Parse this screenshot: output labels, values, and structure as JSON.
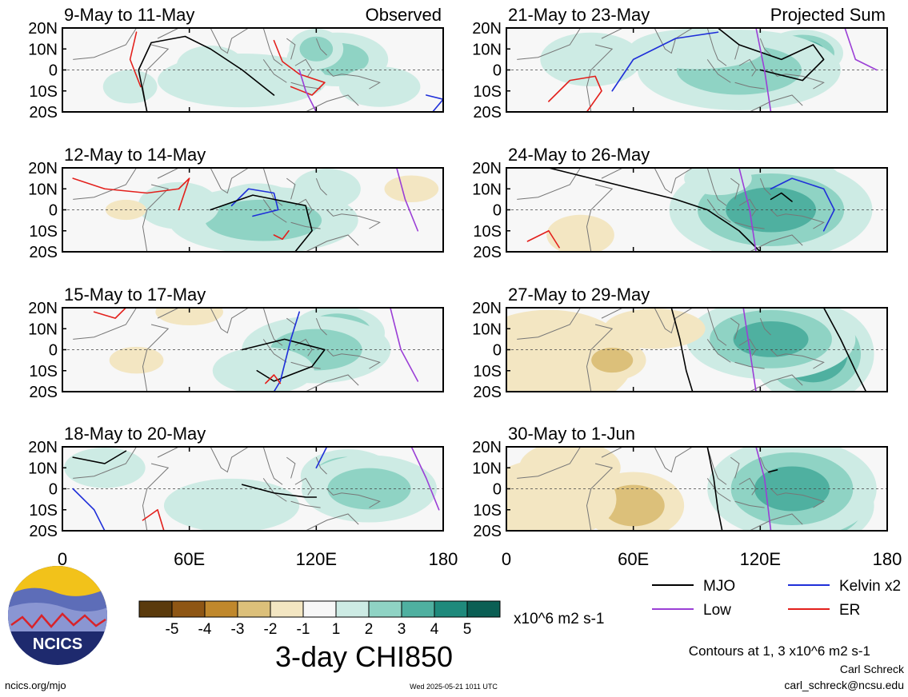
{
  "chart_data": {
    "type": "heatmap",
    "title": "3-day CHI850",
    "variable": "CHI850",
    "units": "x10^6 m2 s-1",
    "contour_note": "Contours at 1, 3 x10^6 m2 s-1",
    "colorbar": {
      "tick_labels": [
        "-5",
        "-4",
        "-3",
        "-2",
        "-1",
        "1",
        "2",
        "3",
        "4",
        "5"
      ],
      "colors": [
        "#5a3a0c",
        "#8e5614",
        "#c0882c",
        "#dcc07a",
        "#f3e6c2",
        "#f7f7f7",
        "#cdebe4",
        "#8fd3c4",
        "#4fb0a0",
        "#1f8a7c",
        "#0b5f54"
      ]
    },
    "x_ticks": [
      "0",
      "60E",
      "120E",
      "180"
    ],
    "y_ticks": [
      "20N",
      "10N",
      "0",
      "10S",
      "20S"
    ],
    "xlim": [
      0,
      180
    ],
    "ylim": [
      -20,
      20
    ],
    "legend": [
      {
        "label": "MJO",
        "color": "#000000"
      },
      {
        "label": "Kelvin x2",
        "color": "#1f2fd9"
      },
      {
        "label": "Low",
        "color": "#9b3fd6"
      },
      {
        "label": "ER",
        "color": "#e3201c"
      }
    ],
    "panels": [
      {
        "title": "9-May to 11-May",
        "tag": "Observed",
        "blobs": [
          [
            70,
            2,
            10,
            6,
            1
          ],
          [
            130,
            5,
            15,
            8,
            2
          ],
          [
            32,
            -8,
            8,
            5,
            1
          ],
          [
            85,
            -5,
            25,
            8,
            1
          ],
          [
            120,
            10,
            8,
            6,
            2
          ],
          [
            150,
            -8,
            12,
            6,
            1
          ]
        ],
        "lines": [
          {
            "kind": "mjo",
            "pts": [
              [
                40,
                -20
              ],
              [
                36,
                0
              ],
              [
                42,
                13
              ],
              [
                58,
                16
              ],
              [
                70,
                10
              ],
              [
                85,
                0
              ],
              [
                100,
                -12
              ]
            ]
          },
          {
            "kind": "er",
            "pts": [
              [
                35,
                18
              ],
              [
                32,
                5
              ],
              [
                37,
                -8
              ]
            ]
          },
          {
            "kind": "er",
            "pts": [
              [
                100,
                14
              ],
              [
                104,
                4
              ],
              [
                112,
                -2
              ],
              [
                124,
                -6
              ],
              [
                118,
                -12
              ],
              [
                108,
                -8
              ]
            ]
          },
          {
            "kind": "kelvin",
            "pts": [
              [
                172,
                -12
              ],
              [
                180,
                -14
              ],
              [
                175,
                -20
              ]
            ]
          },
          {
            "kind": "low",
            "pts": [
              [
                112,
                0
              ],
              [
                115,
                -10
              ],
              [
                120,
                -20
              ]
            ]
          }
        ]
      },
      {
        "title": "12-May to 14-May",
        "blobs": [
          [
            92,
            3,
            12,
            6,
            3
          ],
          [
            95,
            -5,
            28,
            10,
            2
          ],
          [
            55,
            2,
            12,
            7,
            1
          ],
          [
            125,
            10,
            10,
            6,
            1
          ],
          [
            30,
            0,
            6,
            3,
            -1
          ],
          [
            165,
            10,
            8,
            4,
            -1
          ]
        ],
        "lines": [
          {
            "kind": "er",
            "pts": [
              [
                5,
                15
              ],
              [
                20,
                10
              ],
              [
                40,
                8
              ],
              [
                55,
                10
              ],
              [
                60,
                15
              ],
              [
                55,
                0
              ]
            ]
          },
          {
            "kind": "kelvin",
            "pts": [
              [
                80,
                2
              ],
              [
                88,
                10
              ],
              [
                100,
                8
              ],
              [
                102,
                0
              ],
              [
                90,
                -3
              ]
            ]
          },
          {
            "kind": "mjo",
            "pts": [
              [
                70,
                0
              ],
              [
                90,
                7
              ],
              [
                115,
                2
              ],
              [
                118,
                -10
              ],
              [
                110,
                -20
              ]
            ]
          },
          {
            "kind": "er",
            "pts": [
              [
                100,
                -12
              ],
              [
                104,
                -14
              ],
              [
                107,
                -10
              ]
            ]
          },
          {
            "kind": "low",
            "pts": [
              [
                158,
                20
              ],
              [
                162,
                5
              ],
              [
                168,
                -10
              ]
            ]
          }
        ]
      },
      {
        "title": "15-May to 17-May",
        "blobs": [
          [
            130,
            8,
            14,
            8,
            3
          ],
          [
            120,
            0,
            22,
            10,
            2
          ],
          [
            95,
            -10,
            15,
            7,
            1
          ],
          [
            35,
            -5,
            8,
            4,
            -1
          ],
          [
            60,
            18,
            10,
            4,
            -1
          ]
        ],
        "lines": [
          {
            "kind": "mjo",
            "pts": [
              [
                85,
                0
              ],
              [
                105,
                5
              ],
              [
                124,
                0
              ],
              [
                118,
                -8
              ],
              [
                100,
                -15
              ],
              [
                92,
                -10
              ]
            ]
          },
          {
            "kind": "kelvin",
            "pts": [
              [
                112,
                18
              ],
              [
                108,
                5
              ],
              [
                103,
                -15
              ],
              [
                100,
                -20
              ]
            ]
          },
          {
            "kind": "er",
            "pts": [
              [
                96,
                -16
              ],
              [
                100,
                -12
              ],
              [
                103,
                -16
              ]
            ]
          },
          {
            "kind": "er",
            "pts": [
              [
                15,
                18
              ],
              [
                25,
                15
              ],
              [
                30,
                20
              ]
            ]
          },
          {
            "kind": "low",
            "pts": [
              [
                155,
                20
              ],
              [
                160,
                0
              ],
              [
                168,
                -15
              ]
            ]
          }
        ]
      },
      {
        "title": "18-May to 20-May",
        "blobs": [
          [
            135,
            6,
            14,
            8,
            3
          ],
          [
            80,
            -8,
            20,
            8,
            1
          ],
          [
            20,
            10,
            12,
            6,
            1
          ],
          [
            145,
            0,
            20,
            10,
            2
          ]
        ],
        "lines": [
          {
            "kind": "mjo",
            "pts": [
              [
                5,
                15
              ],
              [
                20,
                12
              ],
              [
                30,
                18
              ]
            ]
          },
          {
            "kind": "mjo",
            "pts": [
              [
                85,
                2
              ],
              [
                100,
                -2
              ],
              [
                115,
                -4
              ],
              [
                120,
                -4
              ]
            ]
          },
          {
            "kind": "er",
            "pts": [
              [
                38,
                -15
              ],
              [
                45,
                -10
              ],
              [
                48,
                -20
              ]
            ]
          },
          {
            "kind": "kelvin",
            "pts": [
              [
                5,
                0
              ],
              [
                15,
                -10
              ],
              [
                20,
                -20
              ]
            ]
          },
          {
            "kind": "kelvin",
            "pts": [
              [
                125,
                20
              ],
              [
                120,
                10
              ]
            ]
          },
          {
            "kind": "low",
            "pts": [
              [
                165,
                20
              ],
              [
                172,
                5
              ],
              [
                178,
                -10
              ]
            ]
          }
        ]
      },
      {
        "title": "21-May to 23-May",
        "tag": "Projected Sum",
        "blobs": [
          [
            140,
            8,
            12,
            7,
            4
          ],
          [
            110,
            0,
            30,
            12,
            2
          ],
          [
            40,
            5,
            15,
            8,
            1
          ],
          [
            90,
            10,
            20,
            6,
            1
          ]
        ],
        "lines": [
          {
            "kind": "mjo",
            "pts": [
              [
                100,
                20
              ],
              [
                110,
                12
              ],
              [
                130,
                5
              ],
              [
                145,
                12
              ],
              [
                150,
                5
              ],
              [
                140,
                -5
              ],
              [
                120,
                0
              ]
            ]
          },
          {
            "kind": "er",
            "pts": [
              [
                20,
                -15
              ],
              [
                30,
                -5
              ],
              [
                42,
                -3
              ],
              [
                45,
                -10
              ],
              [
                38,
                -20
              ]
            ]
          },
          {
            "kind": "kelvin",
            "pts": [
              [
                50,
                -10
              ],
              [
                60,
                5
              ],
              [
                80,
                15
              ],
              [
                100,
                18
              ]
            ]
          },
          {
            "kind": "low",
            "pts": [
              [
                118,
                20
              ],
              [
                122,
                0
              ],
              [
                125,
                -20
              ]
            ]
          },
          {
            "kind": "low",
            "pts": [
              [
                160,
                20
              ],
              [
                165,
                5
              ],
              [
                175,
                0
              ]
            ]
          }
        ]
      },
      {
        "title": "24-May to 26-May",
        "blobs": [
          [
            140,
            5,
            14,
            12,
            4
          ],
          [
            125,
            0,
            30,
            15,
            3
          ],
          [
            35,
            -12,
            10,
            6,
            -1
          ],
          [
            100,
            15,
            10,
            5,
            1
          ]
        ],
        "lines": [
          {
            "kind": "mjo",
            "pts": [
              [
                20,
                20
              ],
              [
                40,
                15
              ],
              [
                60,
                10
              ],
              [
                80,
                5
              ],
              [
                95,
                0
              ],
              [
                110,
                -10
              ],
              [
                120,
                -20
              ]
            ]
          },
          {
            "kind": "mjo",
            "pts": [
              [
                125,
                5
              ],
              [
                130,
                8
              ],
              [
                135,
                4
              ]
            ]
          },
          {
            "kind": "kelvin",
            "pts": [
              [
                125,
                10
              ],
              [
                135,
                15
              ],
              [
                150,
                10
              ],
              [
                155,
                0
              ],
              [
                150,
                -10
              ]
            ]
          },
          {
            "kind": "er",
            "pts": [
              [
                10,
                -15
              ],
              [
                20,
                -10
              ],
              [
                25,
                -18
              ]
            ]
          },
          {
            "kind": "low",
            "pts": [
              [
                110,
                20
              ],
              [
                115,
                0
              ],
              [
                118,
                -20
              ]
            ]
          }
        ]
      },
      {
        "title": "27-May to 29-May",
        "blobs": [
          [
            145,
            -2,
            18,
            15,
            4
          ],
          [
            125,
            5,
            25,
            12,
            3
          ],
          [
            20,
            -5,
            25,
            15,
            -1
          ],
          [
            50,
            -5,
            10,
            6,
            -2
          ],
          [
            70,
            10,
            15,
            6,
            -1
          ]
        ],
        "lines": [
          {
            "kind": "mjo",
            "pts": [
              [
                78,
                20
              ],
              [
                82,
                5
              ],
              [
                85,
                -10
              ],
              [
                88,
                -20
              ]
            ]
          },
          {
            "kind": "mjo",
            "pts": [
              [
                150,
                20
              ],
              [
                158,
                5
              ],
              [
                165,
                -10
              ],
              [
                170,
                -20
              ]
            ]
          },
          {
            "kind": "low",
            "pts": [
              [
                112,
                20
              ],
              [
                115,
                0
              ],
              [
                118,
                -20
              ]
            ]
          }
        ]
      },
      {
        "title": "30-May to 1-Jun",
        "blobs": [
          [
            145,
            -8,
            18,
            12,
            5
          ],
          [
            135,
            0,
            25,
            15,
            3
          ],
          [
            60,
            -8,
            15,
            10,
            -2
          ],
          [
            30,
            10,
            15,
            8,
            -1
          ],
          [
            20,
            -5,
            20,
            12,
            -1
          ]
        ],
        "lines": [
          {
            "kind": "mjo",
            "pts": [
              [
                95,
                20
              ],
              [
                98,
                5
              ],
              [
                100,
                -10
              ],
              [
                102,
                -20
              ]
            ]
          },
          {
            "kind": "mjo",
            "pts": [
              [
                124,
                8
              ],
              [
                128,
                9
              ]
            ]
          },
          {
            "kind": "low",
            "pts": [
              [
                118,
                20
              ],
              [
                122,
                5
              ],
              [
                125,
                -20
              ]
            ]
          }
        ]
      }
    ]
  },
  "footer": {
    "logo_text": "NCICS",
    "site": "ncics.org/mjo",
    "timestamp": "Wed 2025-05-21 1011 UTC",
    "author": "Carl Schreck",
    "email": "carl_schreck@ncsu.edu"
  }
}
